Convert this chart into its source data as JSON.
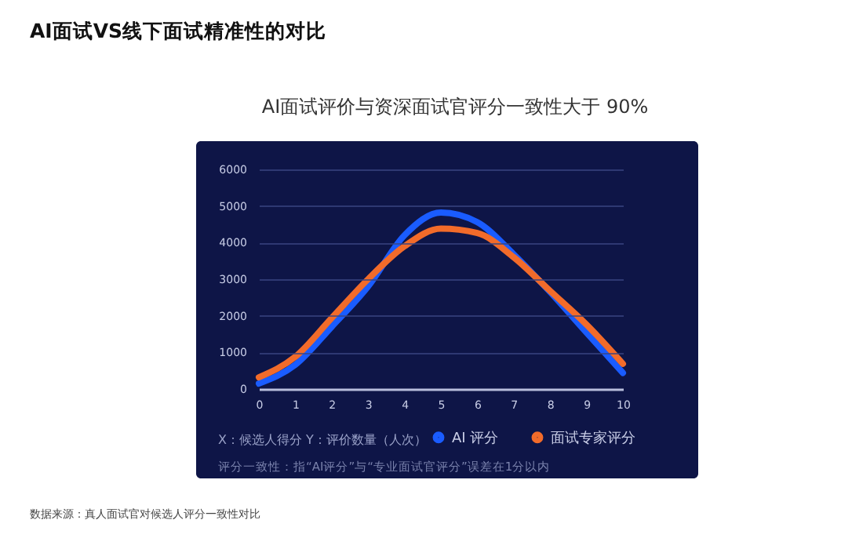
{
  "chart_data": {
    "type": "line",
    "title": "AI面试VS线下面试精准性的对比",
    "subtitle": "AI面试评价与资深面试官评分一致性大于 90%",
    "x": [
      0,
      1,
      2,
      3,
      4,
      5,
      6,
      7,
      8,
      9,
      10
    ],
    "series": [
      {
        "name": "AI 评分",
        "color": "#1a5cff",
        "values": [
          150,
          660,
          1700,
          2800,
          4200,
          4820,
          4560,
          3680,
          2650,
          1540,
          440
        ]
      },
      {
        "name": "面试专家评分",
        "color": "#f26b2a",
        "values": [
          320,
          880,
          1940,
          3000,
          3900,
          4380,
          4260,
          3600,
          2680,
          1760,
          690
        ]
      }
    ],
    "xlim": [
      0,
      10
    ],
    "xticks": [
      0,
      1,
      2,
      3,
      4,
      5,
      6,
      7,
      8,
      9,
      10
    ],
    "ylim": [
      0,
      6000
    ],
    "yticks": [
      0,
      1000,
      2000,
      3000,
      4000,
      5000,
      6000
    ],
    "grid": "y",
    "legend": "bottom",
    "marker": "none",
    "line_style": "solid",
    "annotations": [
      "X：候选人得分",
      "Y：评价数量（人次）",
      "评分一致性：指“AI评分”与“专业面试官评分”误差在1分以内",
      "数据来源：真人面试官对候选人评分一致性对比"
    ]
  }
}
